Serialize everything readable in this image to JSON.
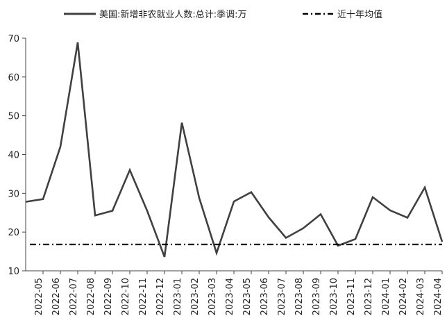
{
  "chart_data": {
    "type": "line",
    "categories": [
      "2022-05",
      "2022-06",
      "2022-07",
      "2022-08",
      "2022-09",
      "2022-10",
      "2022-11",
      "2022-12",
      "2023-01",
      "2023-02",
      "2023-03",
      "2023-04",
      "2023-05",
      "2023-06",
      "2023-07",
      "2023-08",
      "2023-09",
      "2023-10",
      "2023-11",
      "2023-12",
      "2024-01",
      "2024-02",
      "2024-03",
      "2024-04"
    ],
    "series": [
      {
        "name": "美国:新增非农就业人数:总计:季调:万",
        "style": "solid",
        "color": "#404040",
        "values": [
          28.5,
          42.0,
          68.9,
          24.3,
          25.5,
          36.0,
          25.5,
          13.6,
          48.2,
          28.8,
          14.6,
          27.9,
          30.3,
          23.8,
          18.5,
          21.0,
          24.6,
          16.5,
          18.2,
          29.0,
          25.6,
          23.7,
          31.5,
          17.5
        ],
        "start_value": 27.8
      },
      {
        "name": "近十年均值",
        "style": "dash-dot",
        "color": "#000000",
        "values": [
          16.8,
          16.8,
          16.8,
          16.8,
          16.8,
          16.8,
          16.8,
          16.8,
          16.8,
          16.8,
          16.8,
          16.8,
          16.8,
          16.8,
          16.8,
          16.8,
          16.8,
          16.8,
          16.8,
          16.8,
          16.8,
          16.8,
          16.8,
          16.8
        ]
      }
    ],
    "yticks": [
      "10",
      "20",
      "30",
      "40",
      "50",
      "60",
      "70"
    ],
    "ylim": [
      10,
      70
    ],
    "legend_position": "top",
    "grid": false
  }
}
